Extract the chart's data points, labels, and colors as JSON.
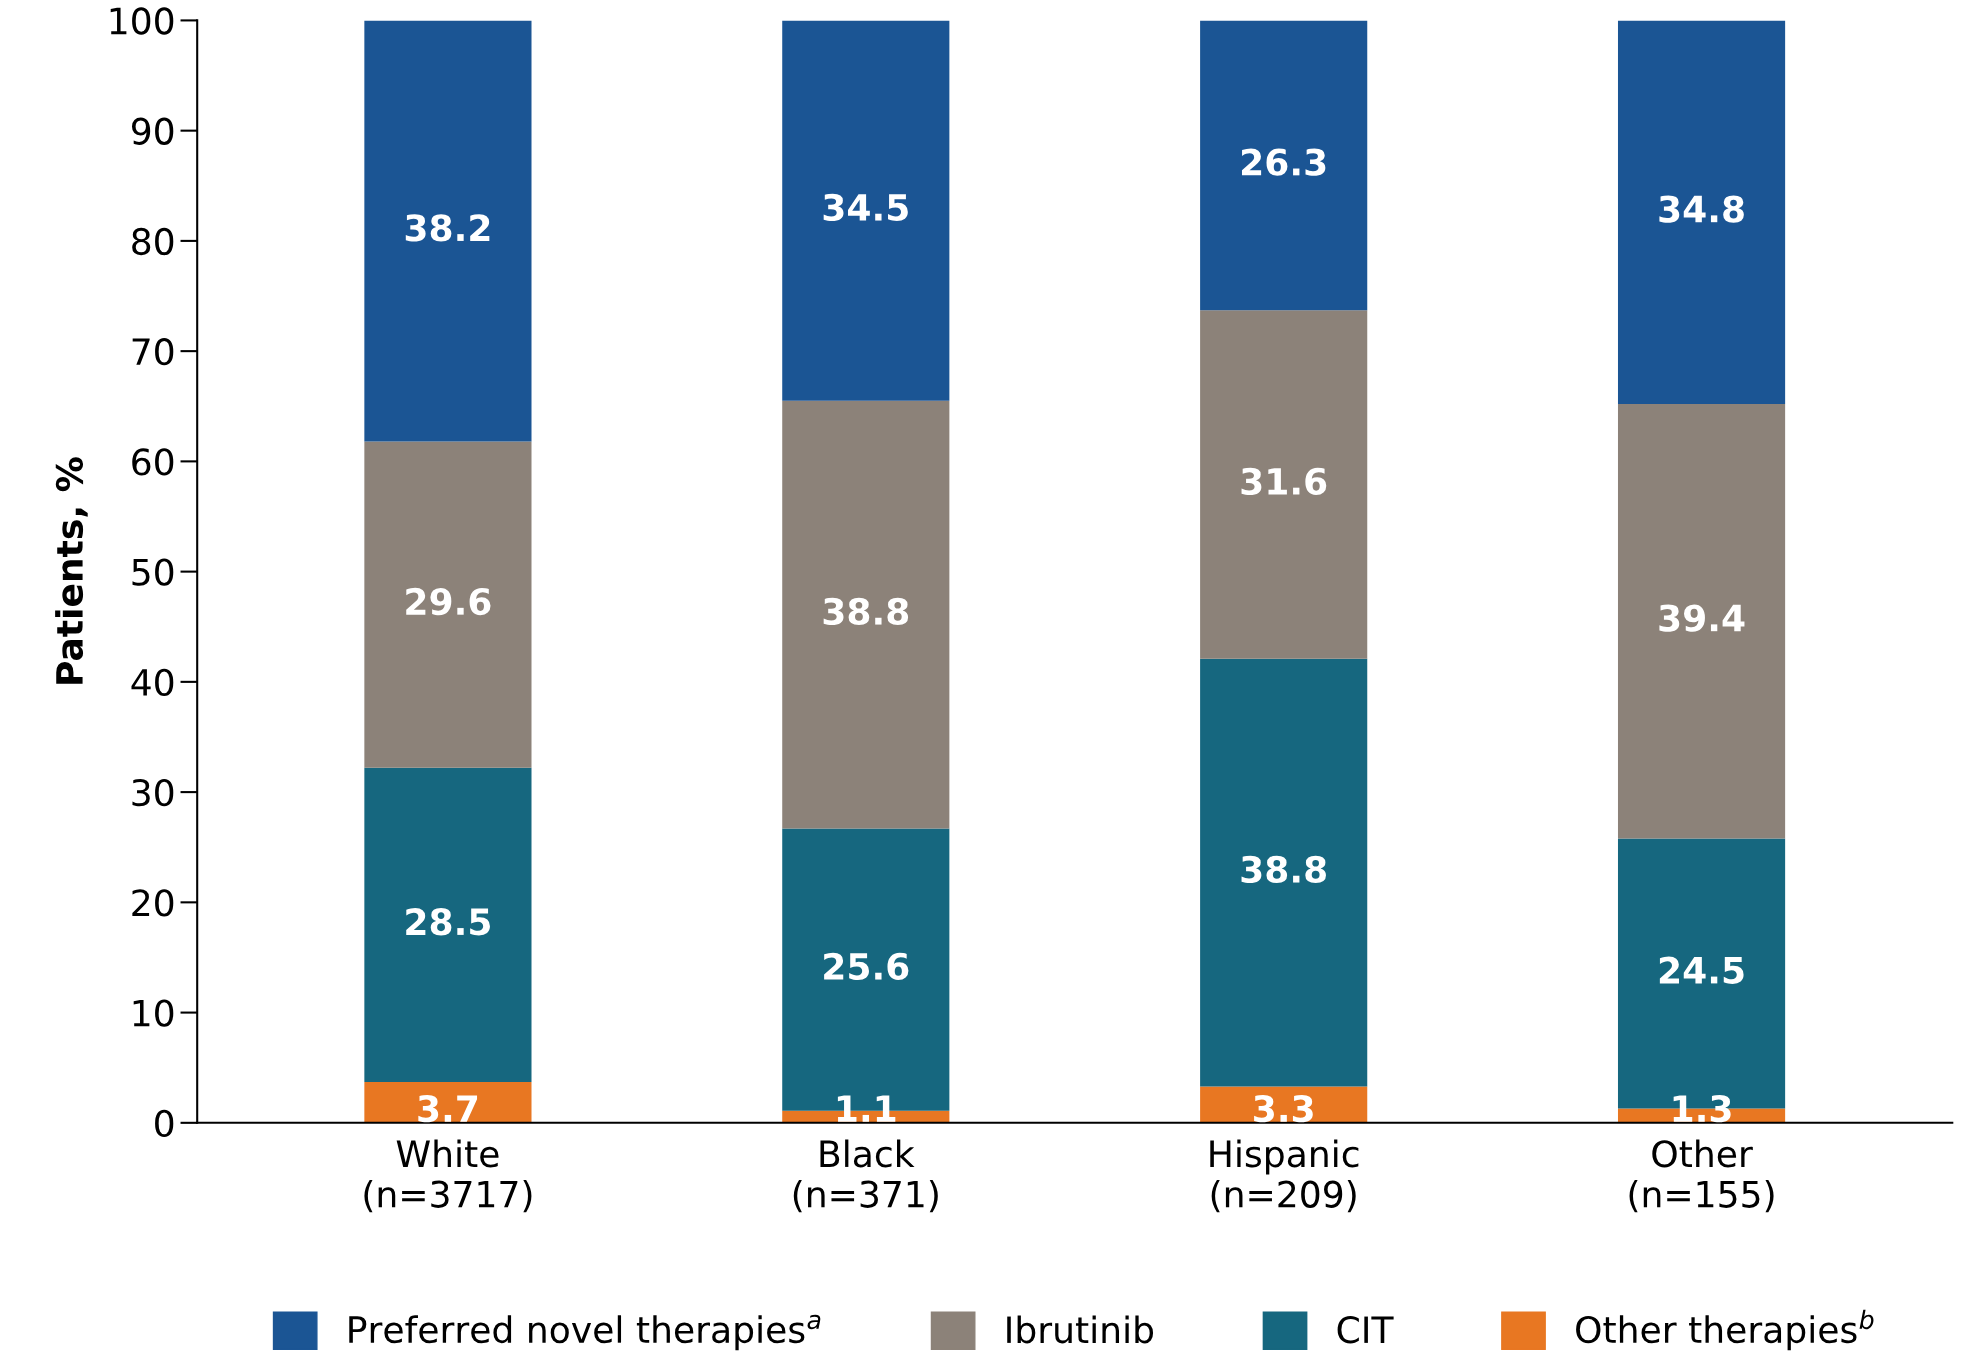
{
  "chart_data": {
    "type": "bar",
    "stacked": true,
    "ylabel": "Patients, %",
    "categories": [
      "White\n(n=3717)",
      "Black\n(n=371)",
      "Hispanic\n(n=209)",
      "Other\n(n=155)"
    ],
    "series": [
      {
        "name": "Other therapies$^{b}$",
        "color": "#e87722",
        "values": [
          3.7,
          1.1,
          3.3,
          1.3
        ]
      },
      {
        "name": "CIT",
        "color": "#16677f",
        "values": [
          28.5,
          25.6,
          38.8,
          24.5
        ]
      },
      {
        "name": "Ibrutinib",
        "color": "#8c8279",
        "values": [
          29.6,
          38.8,
          31.6,
          39.4
        ]
      },
      {
        "name": "Preferred novel therapies$^{a}$",
        "color": "#1b5594",
        "values": [
          38.2,
          34.5,
          26.3,
          34.8
        ]
      }
    ],
    "ylim": [
      0,
      100
    ],
    "yticks": [
      0,
      10,
      20,
      30,
      40,
      50,
      60,
      70,
      80,
      90,
      100
    ],
    "data_labels": true,
    "grid": false,
    "legend": "bottom"
  }
}
